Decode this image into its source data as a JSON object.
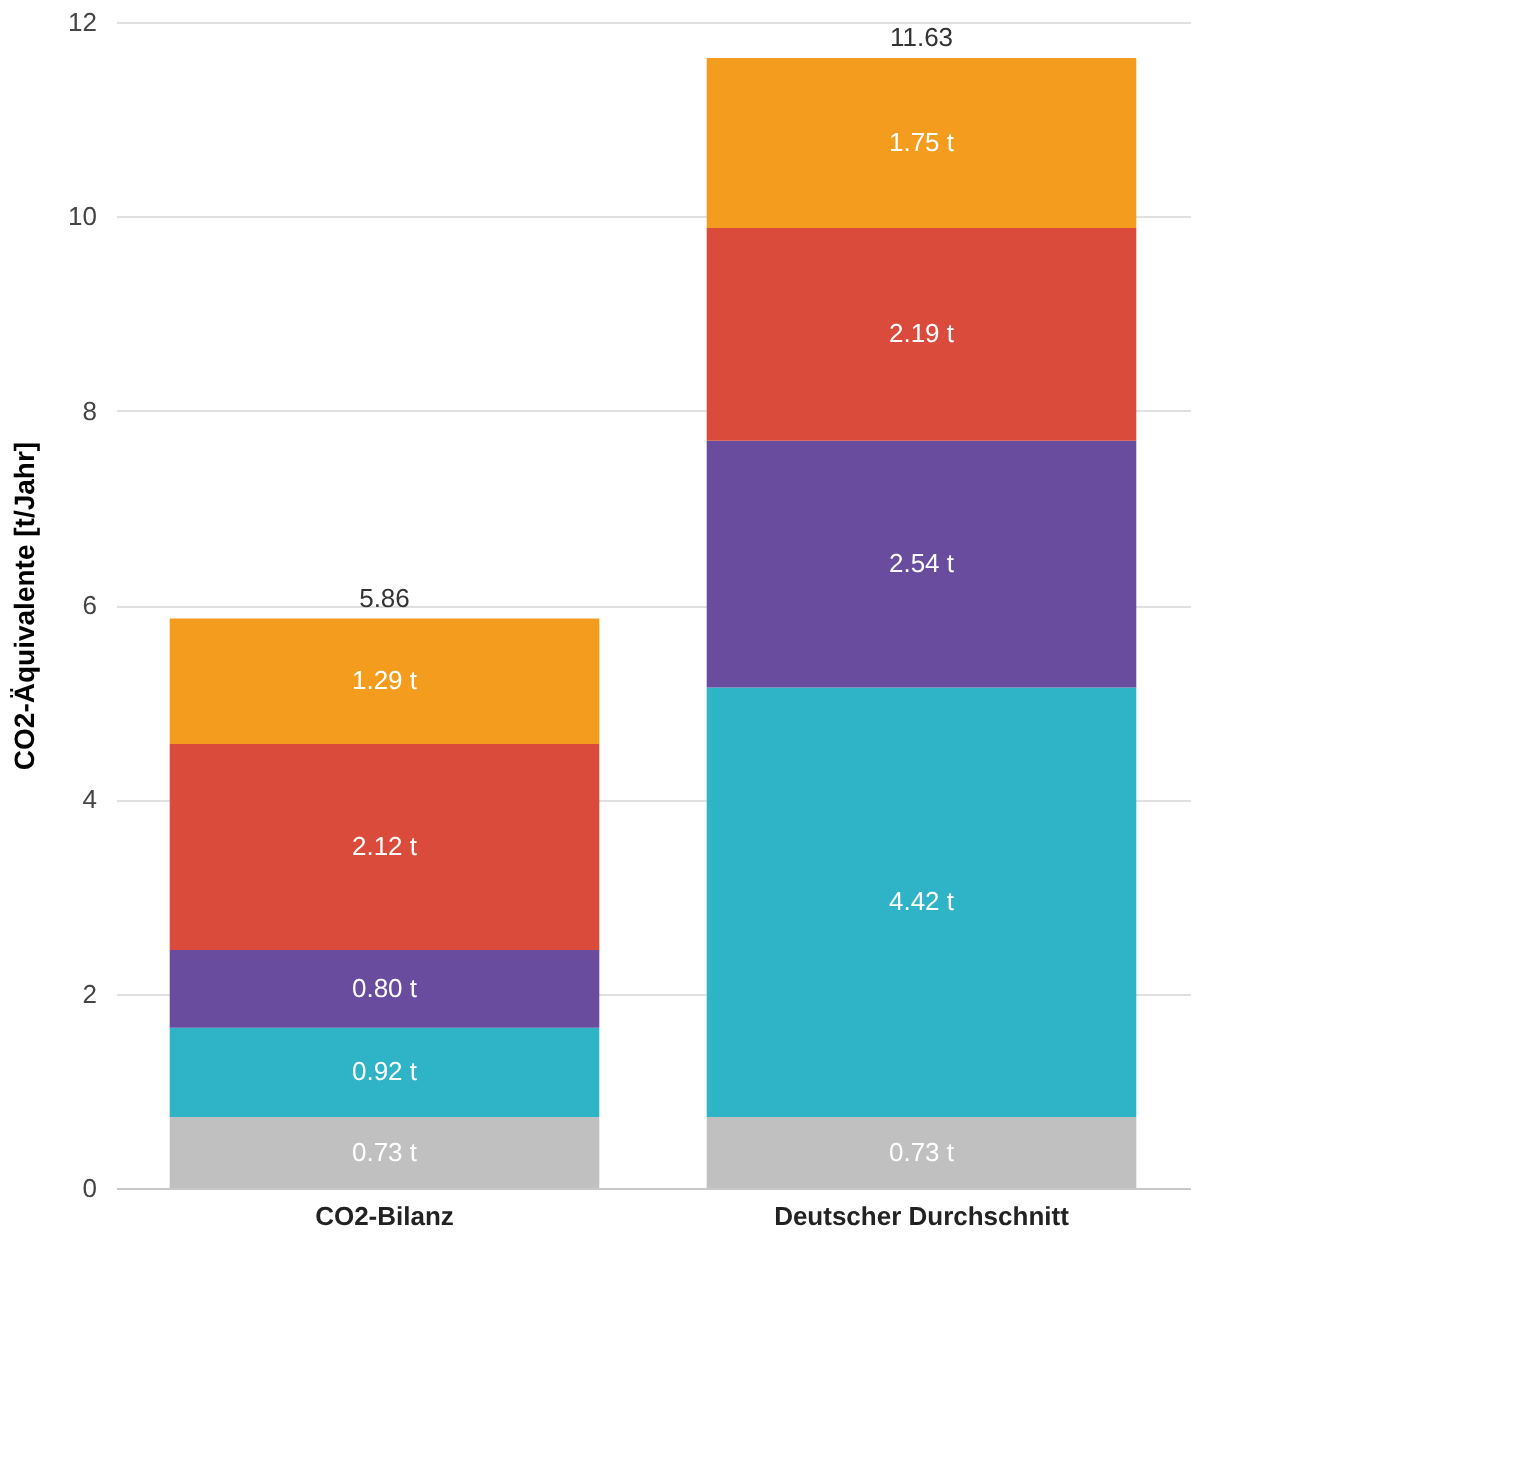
{
  "chart_data": {
    "type": "bar",
    "stacked": true,
    "ylabel": "CO2-Äquivalente [t/Jahr]",
    "categories": [
      "CO2-Bilanz",
      "Deutscher Durchschnitt"
    ],
    "series": [
      {
        "color": "#c0c0c0",
        "values": [
          0.73,
          0.73
        ],
        "value_labels": [
          "0.73 t",
          "0.73 t"
        ]
      },
      {
        "color": "#2fb3c6",
        "values": [
          0.92,
          4.42
        ],
        "value_labels": [
          "0.92 t",
          "4.42 t"
        ]
      },
      {
        "color": "#6a4c9f",
        "values": [
          0.8,
          2.54
        ],
        "value_labels": [
          "0.80 t",
          "2.54 t"
        ]
      },
      {
        "color": "#db4b3c",
        "values": [
          2.12,
          2.19
        ],
        "value_labels": [
          "2.12 t",
          "2.19 t"
        ]
      },
      {
        "color": "#f39c1e",
        "values": [
          1.29,
          1.75
        ],
        "value_labels": [
          "1.29 t",
          "1.75 t"
        ]
      }
    ],
    "totals": [
      "5.86",
      "11.63"
    ],
    "ylim": [
      0,
      12
    ],
    "yticks": [
      0,
      2,
      4,
      6,
      8,
      10,
      12
    ],
    "grid": "y"
  }
}
